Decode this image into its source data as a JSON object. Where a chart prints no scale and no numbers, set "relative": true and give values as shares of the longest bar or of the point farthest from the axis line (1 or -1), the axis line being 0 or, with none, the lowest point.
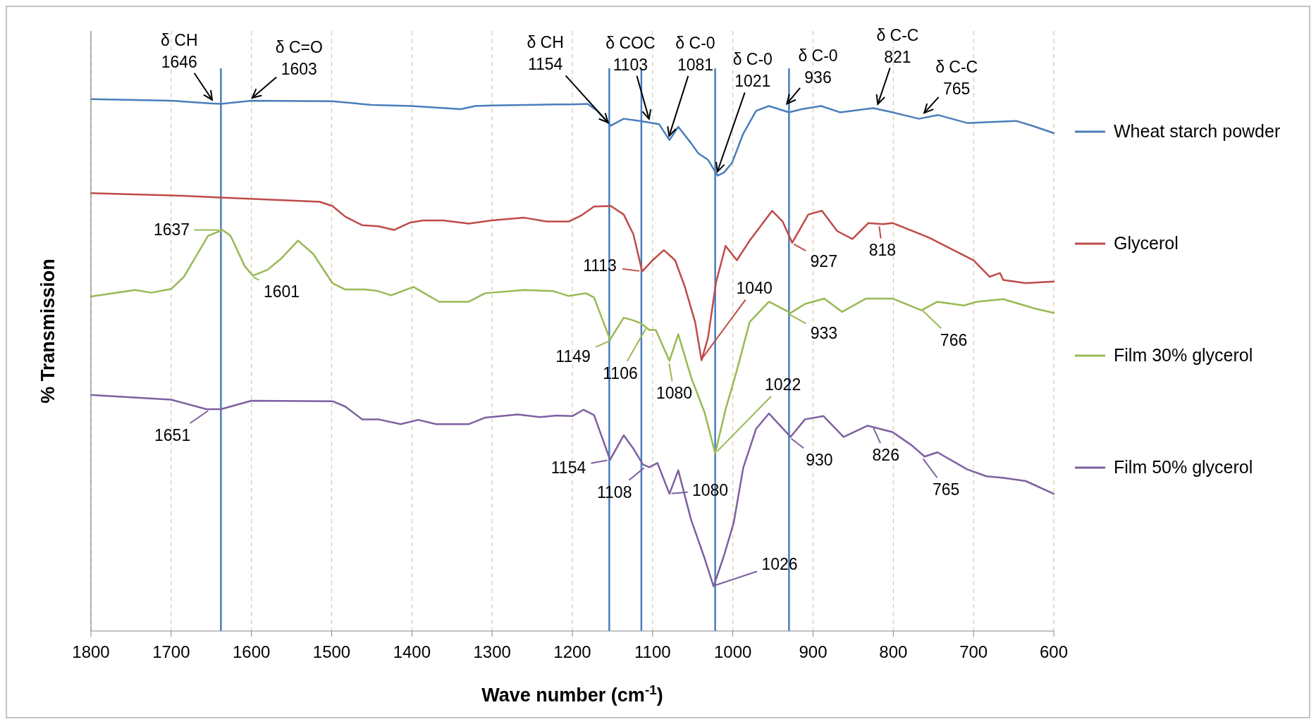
{
  "chart_data": {
    "type": "line",
    "relative": true,
    "xlabel": "Wave number (cm$^{-1}$)",
    "ylabel": "% Transmission",
    "xlim": [
      1800,
      600
    ],
    "xticks": [
      1800,
      1700,
      1600,
      1500,
      1400,
      1300,
      1200,
      1100,
      1000,
      900,
      800,
      700,
      600
    ],
    "grid": "x",
    "legend": "right",
    "tick_labels": "x",
    "line_style": "solid",
    "series": [
      {
        "name": "Wheat starch powder",
        "color": "#4a7ebb",
        "x": [
          1800,
          1700,
          1652,
          1638,
          1600,
          1499,
          1450,
          1401,
          1370,
          1339,
          1321,
          1300,
          1220,
          1200,
          1181,
          1169,
          1152,
          1136,
          1116,
          1100,
          1092,
          1079,
          1068,
          1052,
          1043,
          1031,
          1019,
          1011,
          1001,
          987,
          971,
          955,
          930,
          914,
          890,
          866,
          825,
          801,
          768,
          744,
          708,
          663,
          647,
          627,
          600
        ],
        "values": [
          1,
          0.997,
          0.992,
          0.991,
          0.997,
          0.996,
          0.989,
          0.987,
          0.984,
          0.981,
          0.987,
          0.988,
          0.99,
          0.99,
          0.991,
          0.978,
          0.95,
          0.963,
          0.959,
          0.955,
          0.953,
          0.923,
          0.948,
          0.917,
          0.898,
          0.886,
          0.856,
          0.862,
          0.88,
          0.935,
          0.978,
          0.987,
          0.975,
          0.981,
          0.987,
          0.975,
          0.983,
          0.975,
          0.963,
          0.97,
          0.955,
          0.958,
          0.959,
          0.95,
          0.936
        ]
      },
      {
        "name": "Glycerol",
        "color": "#be4b48",
        "x": [
          1800,
          1700,
          1638,
          1515,
          1499,
          1483,
          1462,
          1442,
          1422,
          1402,
          1386,
          1361,
          1329,
          1301,
          1260,
          1232,
          1204,
          1188,
          1173,
          1152,
          1136,
          1124,
          1113,
          1100,
          1086,
          1072,
          1060,
          1047,
          1039,
          1031,
          1021,
          1009,
          995,
          979,
          967,
          951,
          938,
          926,
          906,
          889,
          870,
          851,
          831,
          813,
          801,
          756,
          700,
          680,
          667,
          663,
          635,
          600
        ],
        "values": [
          0.823,
          0.819,
          0.815,
          0.807,
          0.799,
          0.779,
          0.763,
          0.761,
          0.754,
          0.768,
          0.772,
          0.772,
          0.766,
          0.772,
          0.777,
          0.77,
          0.77,
          0.782,
          0.798,
          0.799,
          0.783,
          0.746,
          0.676,
          0.697,
          0.716,
          0.697,
          0.648,
          0.581,
          0.509,
          0.551,
          0.655,
          0.724,
          0.697,
          0.734,
          0.758,
          0.79,
          0.77,
          0.73,
          0.783,
          0.79,
          0.752,
          0.737,
          0.767,
          0.765,
          0.767,
          0.74,
          0.697,
          0.666,
          0.673,
          0.66,
          0.654,
          0.657
        ]
      },
      {
        "name": "Film 30% glycerol",
        "color": "#98b954",
        "x": [
          1800,
          1745,
          1725,
          1700,
          1684,
          1654,
          1636,
          1626,
          1608,
          1598,
          1580,
          1563,
          1542,
          1523,
          1499,
          1483,
          1458,
          1442,
          1426,
          1398,
          1366,
          1329,
          1309,
          1260,
          1224,
          1205,
          1183,
          1173,
          1153,
          1136,
          1124,
          1114,
          1104,
          1096,
          1079,
          1068,
          1052,
          1035,
          1022,
          1009,
          995,
          979,
          955,
          928,
          910,
          886,
          864,
          834,
          801,
          765,
          745,
          712,
          696,
          663,
          623,
          600
        ],
        "values": [
          0.629,
          0.641,
          0.636,
          0.643,
          0.666,
          0.743,
          0.754,
          0.743,
          0.685,
          0.668,
          0.679,
          0.7,
          0.734,
          0.709,
          0.654,
          0.642,
          0.642,
          0.639,
          0.631,
          0.647,
          0.619,
          0.619,
          0.635,
          0.641,
          0.639,
          0.63,
          0.635,
          0.627,
          0.548,
          0.589,
          0.584,
          0.578,
          0.566,
          0.566,
          0.508,
          0.558,
          0.477,
          0.41,
          0.334,
          0.417,
          0.49,
          0.581,
          0.619,
          0.598,
          0.615,
          0.625,
          0.6,
          0.625,
          0.625,
          0.603,
          0.619,
          0.612,
          0.619,
          0.624,
          0.606,
          0.598
        ]
      },
      {
        "name": "Film 50% glycerol",
        "color": "#7d60a0",
        "x": [
          1800,
          1745,
          1700,
          1656,
          1638,
          1600,
          1499,
          1483,
          1462,
          1442,
          1414,
          1392,
          1370,
          1329,
          1309,
          1268,
          1240,
          1220,
          1200,
          1186,
          1173,
          1153,
          1136,
          1124,
          1112,
          1104,
          1094,
          1079,
          1068,
          1052,
          1035,
          1024,
          1011,
          999,
          987,
          971,
          955,
          928,
          910,
          887,
          862,
          832,
          801,
          777,
          761,
          745,
          708,
          684,
          663,
          635,
          600
        ],
        "values": [
          0.444,
          0.439,
          0.435,
          0.417,
          0.417,
          0.433,
          0.432,
          0.422,
          0.398,
          0.398,
          0.389,
          0.397,
          0.389,
          0.389,
          0.401,
          0.407,
          0.402,
          0.405,
          0.404,
          0.416,
          0.406,
          0.322,
          0.368,
          0.343,
          0.313,
          0.308,
          0.316,
          0.258,
          0.302,
          0.209,
          0.136,
          0.084,
          0.142,
          0.203,
          0.307,
          0.38,
          0.409,
          0.365,
          0.398,
          0.404,
          0.365,
          0.386,
          0.374,
          0.349,
          0.328,
          0.336,
          0.304,
          0.291,
          0.288,
          0.282,
          0.258
        ]
      }
    ],
    "ref_lines": [
      {
        "axis": "x",
        "value": 1638,
        "color": "#4a7ebb"
      },
      {
        "axis": "x",
        "value": 1154,
        "color": "#4a7ebb"
      },
      {
        "axis": "x",
        "value": 1114,
        "color": "#4a7ebb"
      },
      {
        "axis": "x",
        "value": 1022,
        "color": "#4a7ebb"
      },
      {
        "axis": "x",
        "value": 930,
        "color": "#4a7ebb"
      }
    ],
    "annotations": [
      {
        "text": "δ CH\n1646",
        "x": 1646,
        "y": 0.992
      },
      {
        "text": "δ C=O\n1603",
        "x": 1603,
        "y": 0.997
      },
      {
        "text": "δ CH\n1154",
        "x": 1152,
        "y": 0.95
      },
      {
        "text": "δ COC\n1103",
        "x": 1103,
        "y": 0.955
      },
      {
        "text": "δ C-0\n1081",
        "x": 1081,
        "y": 0.923
      },
      {
        "text": "δ C-0\n1021",
        "x": 1021,
        "y": 0.856
      },
      {
        "text": "δ C-0\n936",
        "x": 936,
        "y": 0.985
      },
      {
        "text": "δ C-C\n821",
        "x": 821,
        "y": 0.983
      },
      {
        "text": "δ C-C\n765",
        "x": 765,
        "y": 0.968
      },
      {
        "text": "1113",
        "x": 1113,
        "y": 0.676
      },
      {
        "text": "1040",
        "x": 1040,
        "y": 0.509
      },
      {
        "text": "927",
        "x": 927,
        "y": 0.73
      },
      {
        "text": "818",
        "x": 818,
        "y": 0.766
      },
      {
        "text": "1637",
        "x": 1637,
        "y": 0.754
      },
      {
        "text": "1601",
        "x": 1601,
        "y": 0.668
      },
      {
        "text": "1149",
        "x": 1149,
        "y": 0.548
      },
      {
        "text": "1106",
        "x": 1106,
        "y": 0.575
      },
      {
        "text": "1080",
        "x": 1080,
        "y": 0.508
      },
      {
        "text": "1022",
        "x": 1022,
        "y": 0.334
      },
      {
        "text": "933",
        "x": 933,
        "y": 0.598
      },
      {
        "text": "766",
        "x": 766,
        "y": 0.606
      },
      {
        "text": "1651",
        "x": 1651,
        "y": 0.417
      },
      {
        "text": "1154",
        "x": 1153,
        "y": 0.322
      },
      {
        "text": "1108",
        "x": 1108,
        "y": 0.31
      },
      {
        "text": "1080",
        "x": 1080,
        "y": 0.258
      },
      {
        "text": "1026",
        "x": 1026,
        "y": 0.084
      },
      {
        "text": "930",
        "x": 930,
        "y": 0.365
      },
      {
        "text": "826",
        "x": 826,
        "y": 0.386
      },
      {
        "text": "765",
        "x": 765,
        "y": 0.328
      }
    ]
  }
}
